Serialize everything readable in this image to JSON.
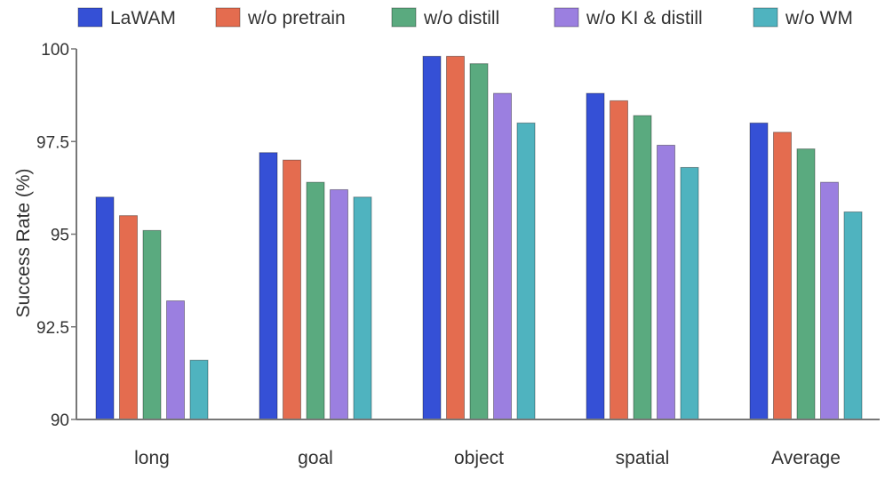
{
  "chart_data": {
    "type": "bar",
    "title": "",
    "xlabel": "",
    "ylabel": "Success Rate (%)",
    "ylim": [
      90,
      100
    ],
    "yticks": [
      90,
      92.5,
      95,
      97.5,
      100
    ],
    "ytick_labels": [
      "90",
      "92.5",
      "95",
      "97.5",
      "100"
    ],
    "categories": [
      "long",
      "goal",
      "object",
      "spatial",
      "Average"
    ],
    "series": [
      {
        "name": "LaWAM",
        "color": "#3550d6",
        "values": [
          96.0,
          97.2,
          99.8,
          98.8,
          98.0
        ]
      },
      {
        "name": "w/o pretrain",
        "color": "#e46c4f",
        "values": [
          95.5,
          97.0,
          99.8,
          98.6,
          97.75
        ]
      },
      {
        "name": "w/o distill",
        "color": "#5aaa7f",
        "values": [
          95.1,
          96.4,
          99.6,
          98.2,
          97.3
        ]
      },
      {
        "name": "w/o KI & distill",
        "color": "#9b7fe0",
        "values": [
          93.2,
          96.2,
          98.8,
          97.4,
          96.4
        ]
      },
      {
        "name": "w/o WM",
        "color": "#4fb3bf",
        "values": [
          91.6,
          96.0,
          98.0,
          96.8,
          95.6
        ]
      }
    ],
    "legend_position": "top",
    "grid": false
  }
}
